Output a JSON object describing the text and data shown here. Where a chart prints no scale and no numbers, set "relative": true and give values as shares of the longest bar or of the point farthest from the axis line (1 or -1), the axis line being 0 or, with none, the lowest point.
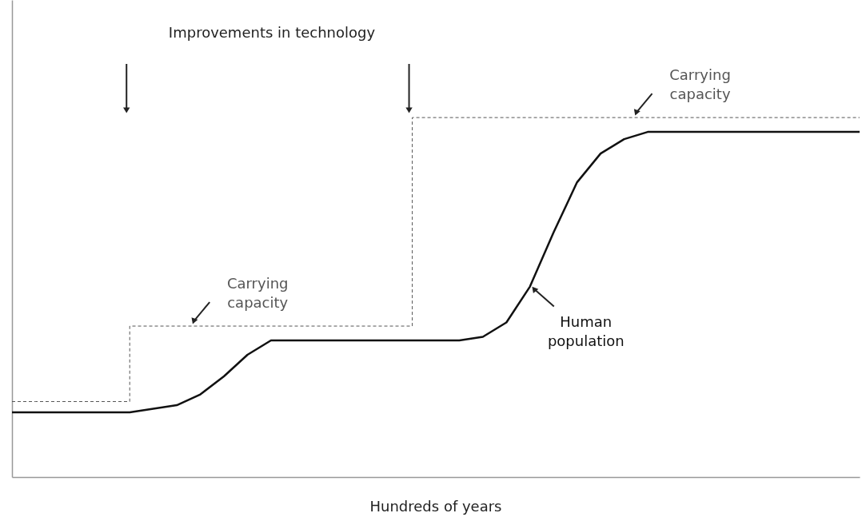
{
  "chart_data": {
    "type": "line",
    "relative": true,
    "xlabel": "Hundreds of years",
    "tick_labels": false,
    "categories": [
      null,
      null,
      null,
      null,
      null,
      null,
      null,
      null,
      null,
      null,
      null,
      null,
      null,
      null,
      null,
      null,
      null,
      null,
      null,
      null,
      null,
      null,
      null,
      null,
      null,
      null,
      null,
      null,
      null,
      null,
      null,
      null,
      null,
      null,
      null,
      null,
      null
    ],
    "annotations": [
      "Improvements in technology"
    ],
    "series": [
      {
        "name": "Carrying capacity",
        "type": "step",
        "line_style": "dashed",
        "color": "#555555",
        "values": [
          0.21,
          0.21,
          0.21,
          0.21,
          0.21,
          0.42,
          0.42,
          0.42,
          0.42,
          0.42,
          0.42,
          0.42,
          0.42,
          0.42,
          0.42,
          0.42,
          0.42,
          1,
          1,
          1,
          1,
          1,
          1,
          1,
          1,
          1,
          1,
          1,
          1,
          1,
          1,
          1,
          1,
          1,
          1,
          1,
          1
        ]
      },
      {
        "name": "Human population",
        "line_style": "solid",
        "color": "#111111",
        "values": [
          0.18,
          0.18,
          0.18,
          0.18,
          0.18,
          0.18,
          0.19,
          0.2,
          0.23,
          0.28,
          0.34,
          0.38,
          0.38,
          0.38,
          0.38,
          0.38,
          0.38,
          0.38,
          0.38,
          0.38,
          0.39,
          0.43,
          0.53,
          0.68,
          0.82,
          0.9,
          0.94,
          0.96,
          0.96,
          0.96,
          0.96,
          0.96,
          0.96,
          0.96,
          0.96,
          0.96,
          0.96
        ]
      }
    ]
  }
}
